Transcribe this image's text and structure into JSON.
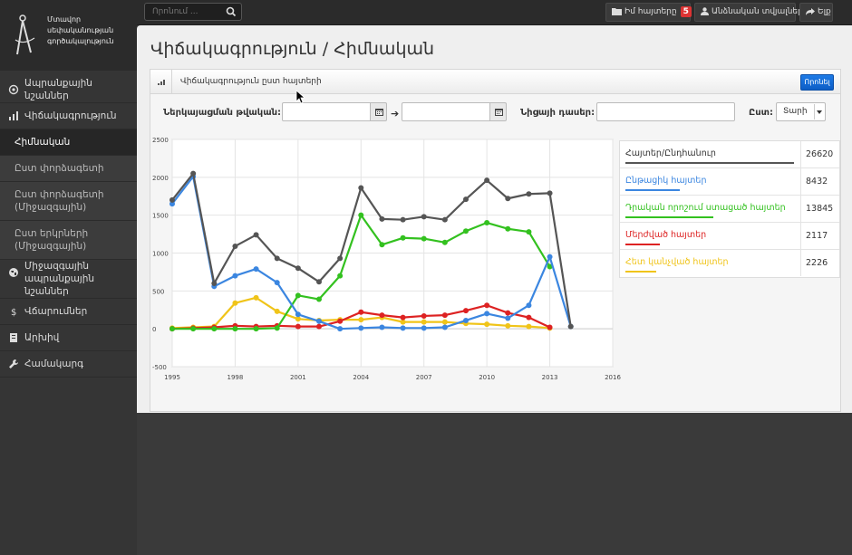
{
  "app": {
    "logo_lines": [
      "Մտավոր",
      "սեփականության",
      "գործակալություն"
    ]
  },
  "topbar": {
    "search_placeholder": "Որոնում ...",
    "my_applications": "Իմ հայտերը",
    "my_applications_count": "5",
    "user": "Անձնական տվյալներ",
    "logout": "Ելք"
  },
  "sidebar": {
    "items": [
      {
        "label": "Ապրանքային նշաններ",
        "icon": "target-icon"
      },
      {
        "label": "Վիճակագրություն",
        "icon": "bar-chart-icon"
      },
      {
        "label": "Հիմնական",
        "sub": true,
        "active": true
      },
      {
        "label": "Ըստ փորձագետի",
        "sub": true
      },
      {
        "label": "Ըստ փորձագետի (Միջազգային)",
        "sub": true
      },
      {
        "label": "Ըստ երկրների (Միջազգային)",
        "sub": true
      },
      {
        "label": "Միջազգային ապրանքային նշաններ",
        "icon": "globe-icon"
      },
      {
        "label": "Վճարումներ",
        "icon": "dollar-icon"
      },
      {
        "label": "Արխիվ",
        "icon": "archive-icon"
      },
      {
        "label": "Համակարգ",
        "icon": "wrench-icon"
      }
    ]
  },
  "page": {
    "title": "Վիճակագրություն / Հիմնական"
  },
  "panel": {
    "header": "Վիճակագրություն ըստ հայտերի",
    "search_button": "Որոնել"
  },
  "filters": {
    "date_label": "Ներկայացման թվական:",
    "date_from": "",
    "date_to": "",
    "nice_label": "Նիցայի դասեր:",
    "nice_value": "",
    "by_label": "Ըստ:",
    "by_value": "Տարի"
  },
  "chart_data": {
    "type": "line",
    "ylim": [
      -500,
      2500
    ],
    "yticks": [
      "2500",
      "2000",
      "1500",
      "1000",
      "500",
      "0",
      "-500"
    ],
    "xlim": [
      1995,
      2016
    ],
    "xticks": [
      "1995",
      "1998",
      "2001",
      "2004",
      "2007",
      "2010",
      "2013",
      "2016"
    ],
    "x": [
      1995,
      1996,
      1997,
      1998,
      1999,
      2000,
      2001,
      2002,
      2003,
      2004,
      2005,
      2006,
      2007,
      2008,
      2009,
      2010,
      2011,
      2012,
      2013,
      2014
    ],
    "grid": true,
    "legend": "right",
    "series": [
      {
        "name": "Հայտեր/Ընդհանուր",
        "total": "26620",
        "color": "#555555",
        "values": [
          1700,
          2050,
          600,
          1090,
          1240,
          930,
          800,
          620,
          930,
          1860,
          1450,
          1440,
          1480,
          1440,
          1710,
          1960,
          1720,
          1780,
          1790,
          30
        ]
      },
      {
        "name": "Ընթացիկ հայտեր",
        "total": "8432",
        "color": "#3b86e0",
        "values": [
          1650,
          2010,
          560,
          700,
          790,
          610,
          190,
          100,
          0,
          10,
          20,
          10,
          10,
          20,
          110,
          200,
          140,
          310,
          950,
          30
        ]
      },
      {
        "name": "Դրական որոշում ստացած հայտեր",
        "total": "13845",
        "color": "#33c11f",
        "values": [
          0,
          0,
          0,
          0,
          0,
          10,
          440,
          390,
          700,
          1500,
          1110,
          1200,
          1190,
          1140,
          1290,
          1400,
          1320,
          1280,
          820,
          null
        ]
      },
      {
        "name": "Մերժված հայտեր",
        "total": "2117",
        "color": "#dd2222",
        "values": [
          0,
          10,
          20,
          40,
          30,
          40,
          30,
          30,
          100,
          220,
          180,
          150,
          170,
          180,
          240,
          310,
          210,
          150,
          20,
          null
        ]
      },
      {
        "name": "Հետ կանչված հայտեր",
        "total": "2226",
        "color": "#f0c419",
        "values": [
          10,
          20,
          30,
          340,
          410,
          230,
          130,
          110,
          120,
          120,
          150,
          90,
          90,
          90,
          70,
          60,
          40,
          30,
          10,
          null
        ]
      }
    ]
  }
}
